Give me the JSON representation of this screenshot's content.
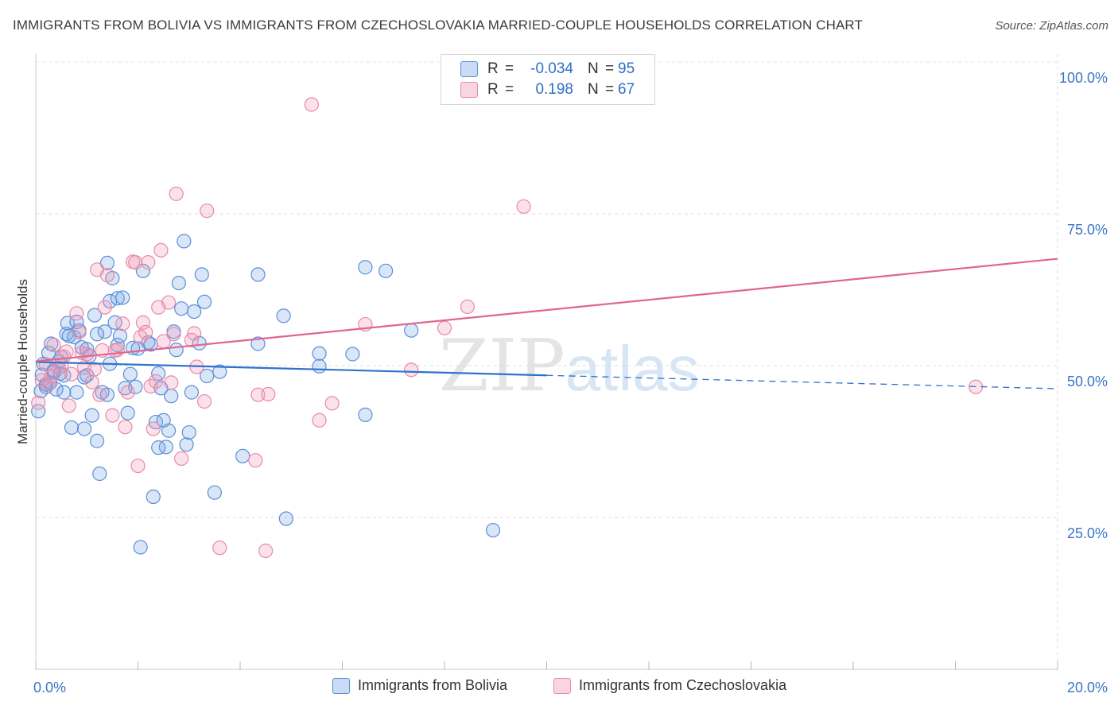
{
  "title": "IMMIGRANTS FROM BOLIVIA VS IMMIGRANTS FROM CZECHOSLOVAKIA MARRIED-COUPLE HOUSEHOLDS CORRELATION CHART",
  "source": "Source: ZipAtlas.com",
  "watermark": {
    "zip": "ZIP",
    "atlas": "atlas"
  },
  "colors": {
    "blue": "#5b8fd8",
    "blue_fill": "rgba(120,165,230,0.28)",
    "blue_line": "#2f72cc",
    "pink": "#e88aa8",
    "pink_fill": "rgba(240,150,180,0.28)",
    "pink_line": "#e06690",
    "axis_text": "#3a74c8"
  },
  "legend": {
    "r_label": "R =",
    "n_label": "N =",
    "rows": [
      {
        "name": "Immigrants from Bolivia",
        "r": "-0.034",
        "n": "95",
        "color": "blue"
      },
      {
        "name": "Immigrants from Czechoslovakia",
        "r": "0.198",
        "n": "67",
        "color": "pink"
      }
    ]
  },
  "chart_data": {
    "type": "scatter",
    "title": "IMMIGRANTS FROM BOLIVIA VS IMMIGRANTS FROM CZECHOSLOVAKIA MARRIED-COUPLE HOUSEHOLDS CORRELATION CHART",
    "xlabel": "",
    "ylabel": "Married-couple Households",
    "xlim": [
      0,
      20
    ],
    "ylim": [
      0,
      100
    ],
    "x_tick_labels": [
      {
        "value": 0,
        "label": "0.0%"
      },
      {
        "value": 20,
        "label": "20.0%"
      }
    ],
    "y_tick_labels": [
      {
        "value": 25,
        "label": "25.0%"
      },
      {
        "value": 50,
        "label": "50.0%"
      },
      {
        "value": 75,
        "label": "75.0%"
      },
      {
        "value": 100,
        "label": "100.0%"
      }
    ],
    "grid": true,
    "legend_position": "top-center",
    "series": [
      {
        "name": "Immigrants from Bolivia",
        "color": "blue",
        "trend": {
          "x": [
            0,
            10
          ],
          "y": [
            50.6,
            48.4
          ],
          "dashed_to": [
            20,
            46.2
          ]
        },
        "points": [
          [
            0.05,
            42.5
          ],
          [
            0.1,
            45.8
          ],
          [
            0.12,
            48.5
          ],
          [
            0.15,
            50.3
          ],
          [
            0.2,
            46.9
          ],
          [
            0.25,
            52.1
          ],
          [
            0.28,
            47.2
          ],
          [
            0.3,
            53.6
          ],
          [
            0.35,
            49.2
          ],
          [
            0.4,
            46.1
          ],
          [
            0.45,
            50.7
          ],
          [
            0.48,
            48.7
          ],
          [
            0.5,
            51.4
          ],
          [
            0.55,
            48.4
          ],
          [
            0.6,
            55.2
          ],
          [
            0.62,
            57.0
          ],
          [
            0.7,
            39.8
          ],
          [
            0.75,
            54.7
          ],
          [
            0.8,
            57.2
          ],
          [
            0.8,
            45.6
          ],
          [
            0.85,
            55.8
          ],
          [
            0.9,
            53.0
          ],
          [
            0.95,
            39.6
          ],
          [
            0.95,
            48.1
          ],
          [
            1.0,
            52.7
          ],
          [
            1.05,
            51.6
          ],
          [
            1.1,
            41.8
          ],
          [
            1.15,
            58.3
          ],
          [
            1.2,
            37.6
          ],
          [
            1.25,
            32.2
          ],
          [
            1.3,
            45.6
          ],
          [
            1.35,
            55.6
          ],
          [
            1.4,
            66.9
          ],
          [
            1.45,
            60.6
          ],
          [
            1.45,
            50.3
          ],
          [
            1.5,
            64.4
          ],
          [
            1.55,
            57.1
          ],
          [
            1.6,
            61.1
          ],
          [
            1.6,
            53.4
          ],
          [
            1.65,
            54.9
          ],
          [
            1.7,
            61.2
          ],
          [
            1.75,
            46.3
          ],
          [
            1.8,
            42.2
          ],
          [
            1.85,
            48.6
          ],
          [
            1.9,
            52.9
          ],
          [
            1.95,
            46.5
          ],
          [
            2.0,
            52.8
          ],
          [
            2.05,
            20.1
          ],
          [
            2.1,
            65.6
          ],
          [
            2.2,
            53.8
          ],
          [
            2.25,
            53.5
          ],
          [
            2.3,
            28.4
          ],
          [
            2.35,
            40.7
          ],
          [
            2.4,
            48.7
          ],
          [
            2.45,
            46.3
          ],
          [
            2.5,
            41.0
          ],
          [
            2.55,
            36.6
          ],
          [
            2.6,
            39.3
          ],
          [
            2.65,
            45.0
          ],
          [
            2.7,
            55.6
          ],
          [
            2.75,
            52.6
          ],
          [
            2.8,
            63.6
          ],
          [
            2.85,
            59.4
          ],
          [
            2.9,
            70.5
          ],
          [
            2.95,
            37.0
          ],
          [
            3.0,
            39.0
          ],
          [
            3.05,
            45.6
          ],
          [
            3.1,
            58.9
          ],
          [
            3.2,
            53.7
          ],
          [
            3.25,
            65.0
          ],
          [
            3.3,
            60.5
          ],
          [
            3.35,
            48.3
          ],
          [
            3.5,
            29.1
          ],
          [
            3.6,
            49.0
          ],
          [
            4.05,
            35.1
          ],
          [
            4.35,
            65.0
          ],
          [
            4.35,
            53.6
          ],
          [
            4.85,
            58.2
          ],
          [
            4.9,
            24.8
          ],
          [
            5.55,
            52.0
          ],
          [
            5.55,
            49.9
          ],
          [
            6.2,
            51.9
          ],
          [
            6.45,
            41.9
          ],
          [
            6.45,
            66.2
          ],
          [
            6.85,
            65.6
          ],
          [
            7.35,
            55.8
          ],
          [
            8.95,
            22.9
          ],
          [
            1.2,
            55.2
          ],
          [
            0.65,
            54.9
          ],
          [
            0.35,
            48.9
          ],
          [
            0.2,
            46.5
          ],
          [
            1.0,
            48.4
          ],
          [
            2.4,
            36.5
          ],
          [
            1.4,
            45.2
          ],
          [
            0.55,
            45.6
          ]
        ]
      },
      {
        "name": "Immigrants from Czechoslovakia",
        "color": "pink",
        "trend": {
          "x": [
            0,
            20
          ],
          "y": [
            50.7,
            67.6
          ]
        },
        "points": [
          [
            0.05,
            43.9
          ],
          [
            0.12,
            47.6
          ],
          [
            0.2,
            50.2
          ],
          [
            0.3,
            48.1
          ],
          [
            0.35,
            53.4
          ],
          [
            0.45,
            49.6
          ],
          [
            0.5,
            50.1
          ],
          [
            0.55,
            51.5
          ],
          [
            0.6,
            52.3
          ],
          [
            0.65,
            43.4
          ],
          [
            0.7,
            48.6
          ],
          [
            0.8,
            58.6
          ],
          [
            0.85,
            55.5
          ],
          [
            0.9,
            52.1
          ],
          [
            0.95,
            49.7
          ],
          [
            1.0,
            51.9
          ],
          [
            1.1,
            47.3
          ],
          [
            1.15,
            49.4
          ],
          [
            1.2,
            65.8
          ],
          [
            1.25,
            45.2
          ],
          [
            1.3,
            52.5
          ],
          [
            1.35,
            59.6
          ],
          [
            1.4,
            64.9
          ],
          [
            1.5,
            41.8
          ],
          [
            1.55,
            52.5
          ],
          [
            1.6,
            52.6
          ],
          [
            1.7,
            56.9
          ],
          [
            1.75,
            39.9
          ],
          [
            1.8,
            45.6
          ],
          [
            1.9,
            67.1
          ],
          [
            1.95,
            67.0
          ],
          [
            2.0,
            33.5
          ],
          [
            2.05,
            54.7
          ],
          [
            2.1,
            57.1
          ],
          [
            2.15,
            55.5
          ],
          [
            2.2,
            67.0
          ],
          [
            2.25,
            46.6
          ],
          [
            2.3,
            39.6
          ],
          [
            2.35,
            47.4
          ],
          [
            2.4,
            59.6
          ],
          [
            2.45,
            69.0
          ],
          [
            2.5,
            54.0
          ],
          [
            2.6,
            60.4
          ],
          [
            2.65,
            47.2
          ],
          [
            2.7,
            55.2
          ],
          [
            2.75,
            78.3
          ],
          [
            2.85,
            34.7
          ],
          [
            3.05,
            54.2
          ],
          [
            3.1,
            55.3
          ],
          [
            3.15,
            49.8
          ],
          [
            3.3,
            44.1
          ],
          [
            3.35,
            75.5
          ],
          [
            3.6,
            20.0
          ],
          [
            4.3,
            34.4
          ],
          [
            4.35,
            45.2
          ],
          [
            4.5,
            19.5
          ],
          [
            4.55,
            45.3
          ],
          [
            5.4,
            93.0
          ],
          [
            5.55,
            41.0
          ],
          [
            5.8,
            43.8
          ],
          [
            6.45,
            56.8
          ],
          [
            7.35,
            49.3
          ],
          [
            8.0,
            56.2
          ],
          [
            8.45,
            59.7
          ],
          [
            9.55,
            76.2
          ],
          [
            18.4,
            46.5
          ],
          [
            0.25,
            47.0
          ]
        ]
      }
    ]
  }
}
